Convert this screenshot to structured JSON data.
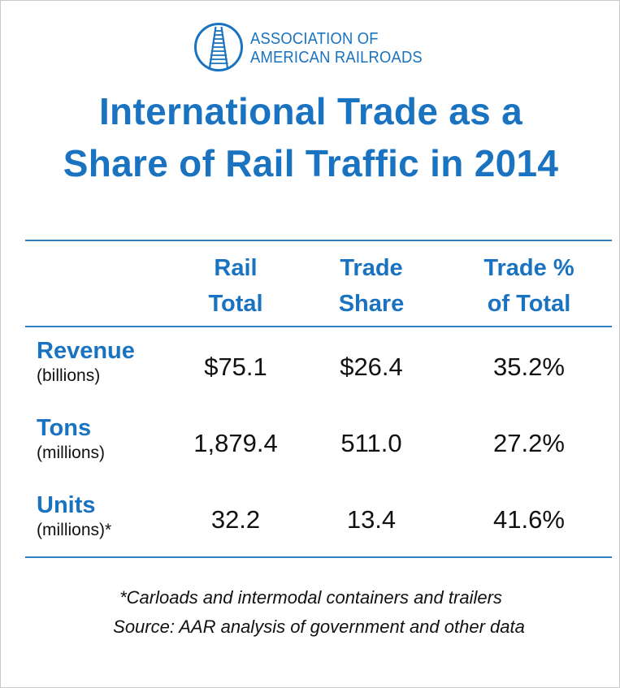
{
  "logo": {
    "line1": "ASSOCIATION OF",
    "line2": "AMERICAN RAILROADS",
    "brand_color": "#1a73c0",
    "icon": "railroad-track-circle-icon"
  },
  "title": {
    "line1": "International Trade as a",
    "line2": "Share of Rail Traffic in 2014"
  },
  "columns": [
    {
      "line1": "Rail",
      "line2": "Total"
    },
    {
      "line1": "Trade",
      "line2": "Share"
    },
    {
      "line1": "Trade %",
      "line2": "of Total"
    }
  ],
  "rows": [
    {
      "name": "Revenue",
      "unit": "(billions)",
      "values": [
        "$75.1",
        "$26.4",
        "35.2%"
      ]
    },
    {
      "name": "Tons",
      "unit": "(millions)",
      "values": [
        "1,879.4",
        "511.0",
        "27.2%"
      ]
    },
    {
      "name": "Units",
      "unit": "(millions)*",
      "values": [
        "32.2",
        "13.4",
        "41.6%"
      ]
    }
  ],
  "footnote": {
    "line1": "*Carloads and intermodal containers and trailers",
    "line2": "Source: AAR analysis of government and other data"
  }
}
